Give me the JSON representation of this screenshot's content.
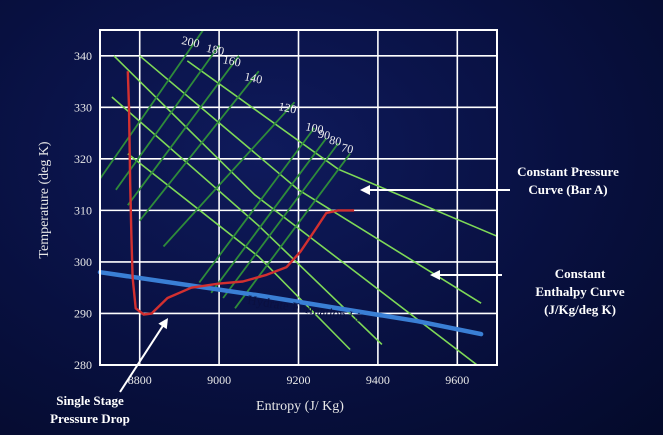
{
  "chart_data": {
    "type": "line",
    "xlabel": "Entropy (J/ Kg)",
    "ylabel": "Temperature (deg K)",
    "xlim": [
      8700,
      9700
    ],
    "ylim": [
      280,
      345
    ],
    "x_ticks": [
      8800,
      9000,
      9200,
      9400,
      9600
    ],
    "y_ticks": [
      280,
      290,
      300,
      310,
      320,
      330,
      340
    ],
    "grid": true,
    "colors": {
      "background": "#081040",
      "grid": "#ffffff",
      "constant_pressure": "#2e8b3a",
      "constant_enthalpy": "#7ed957",
      "process": "#d23030",
      "hydrate": "#3a7fd5"
    },
    "constant_pressure_labels": [
      "200",
      "180",
      "160",
      "140",
      "120",
      "100",
      "90",
      "80",
      "70"
    ],
    "constant_pressure_curves": [
      {
        "label": "200",
        "points": [
          [
            8690,
            315
          ],
          [
            8960,
            345
          ]
        ]
      },
      {
        "label": "180",
        "points": [
          [
            8740,
            314
          ],
          [
            9000,
            342
          ]
        ]
      },
      {
        "label": "160",
        "points": [
          [
            8770,
            311
          ],
          [
            9050,
            340
          ]
        ]
      },
      {
        "label": "140",
        "points": [
          [
            8800,
            308
          ],
          [
            9100,
            337
          ]
        ]
      },
      {
        "label": "120",
        "points": [
          [
            8860,
            303
          ],
          [
            9190,
            331
          ]
        ]
      },
      {
        "label": "100",
        "points": [
          [
            8950,
            296
          ],
          [
            9240,
            326
          ]
        ]
      },
      {
        "label": "90",
        "points": [
          [
            8980,
            294
          ],
          [
            9270,
            324
          ]
        ]
      },
      {
        "label": "80",
        "points": [
          [
            9010,
            293
          ],
          [
            9300,
            323
          ]
        ]
      },
      {
        "label": "70",
        "points": [
          [
            9040,
            291
          ],
          [
            9330,
            321
          ]
        ]
      }
    ],
    "constant_enthalpy_curves": [
      {
        "points": [
          [
            8735,
            340
          ],
          [
            9090,
            313
          ],
          [
            9650,
            280
          ]
        ]
      },
      {
        "points": [
          [
            8800,
            340
          ],
          [
            9200,
            314
          ],
          [
            9660,
            292
          ]
        ]
      },
      {
        "points": [
          [
            8730,
            332
          ],
          [
            9100,
            307
          ],
          [
            9410,
            284
          ]
        ]
      },
      {
        "points": [
          [
            8770,
            321
          ],
          [
            9100,
            301
          ],
          [
            9330,
            283
          ]
        ]
      },
      {
        "points": [
          [
            8920,
            339
          ],
          [
            9300,
            318
          ],
          [
            9700,
            305
          ]
        ]
      }
    ],
    "process_curve": {
      "points": [
        [
          8770,
          337
        ],
        [
          8773,
          330
        ],
        [
          8776,
          315
        ],
        [
          8779,
          305
        ],
        [
          8782,
          297
        ],
        [
          8790,
          291
        ],
        [
          8810,
          289.8
        ],
        [
          8830,
          290
        ],
        [
          8870,
          293
        ],
        [
          8930,
          295
        ],
        [
          9000,
          295.8
        ],
        [
          9060,
          296.2
        ],
        [
          9120,
          297.5
        ],
        [
          9170,
          299
        ],
        [
          9205,
          302
        ],
        [
          9240,
          306
        ],
        [
          9270,
          309.5
        ],
        [
          9300,
          310
        ],
        [
          9340,
          310
        ]
      ]
    },
    "hydrate_line": {
      "label": "Hydrate Formation Line",
      "points": [
        [
          8700,
          298
        ],
        [
          9100,
          293.5
        ],
        [
          9500,
          288.5
        ],
        [
          9660,
          286
        ]
      ]
    },
    "annotations": [
      {
        "id": "constant-pressure",
        "lines": [
          "Constant Pressure",
          "Curve (Bar A)"
        ]
      },
      {
        "id": "constant-enthalpy",
        "lines": [
          "Constant",
          "Enthalpy Curve",
          "(J/Kg/deg K)"
        ]
      },
      {
        "id": "single-stage",
        "lines": [
          "Single Stage",
          "Pressure Drop"
        ]
      }
    ]
  }
}
